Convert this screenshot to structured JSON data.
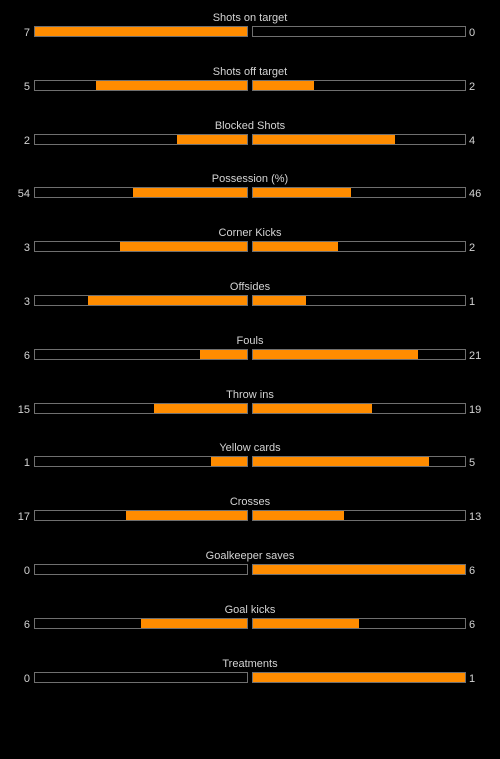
{
  "colors": {
    "background": "#000000",
    "fill": "#ff8c00",
    "border": "#6f6f6f",
    "text": "#d4d4d4"
  },
  "stats": [
    {
      "title": "Shots on target",
      "home": "7",
      "away": "0",
      "home_fill": 1.0,
      "away_fill": 0.0
    },
    {
      "title": "Shots off target",
      "home": "5",
      "away": "2",
      "home_fill": 0.71,
      "away_fill": 0.29
    },
    {
      "title": "Blocked Shots",
      "home": "2",
      "away": "4",
      "home_fill": 0.33,
      "away_fill": 0.67
    },
    {
      "title": "Possession (%)",
      "home": "54",
      "away": "46",
      "home_fill": 0.54,
      "away_fill": 0.46
    },
    {
      "title": "Corner Kicks",
      "home": "3",
      "away": "2",
      "home_fill": 0.6,
      "away_fill": 0.4
    },
    {
      "title": "Offsides",
      "home": "3",
      "away": "1",
      "home_fill": 0.75,
      "away_fill": 0.25
    },
    {
      "title": "Fouls",
      "home": "6",
      "away": "21",
      "home_fill": 0.22,
      "away_fill": 0.78
    },
    {
      "title": "Throw ins",
      "home": "15",
      "away": "19",
      "home_fill": 0.44,
      "away_fill": 0.56
    },
    {
      "title": "Yellow cards",
      "home": "1",
      "away": "5",
      "home_fill": 0.17,
      "away_fill": 0.83
    },
    {
      "title": "Crosses",
      "home": "17",
      "away": "13",
      "home_fill": 0.57,
      "away_fill": 0.43
    },
    {
      "title": "Goalkeeper saves",
      "home": "0",
      "away": "6",
      "home_fill": 0.0,
      "away_fill": 1.0
    },
    {
      "title": "Goal kicks",
      "home": "6",
      "away": "6",
      "home_fill": 0.5,
      "away_fill": 0.5
    },
    {
      "title": "Treatments",
      "home": "0",
      "away": "1",
      "home_fill": 0.0,
      "away_fill": 1.0
    }
  ]
}
